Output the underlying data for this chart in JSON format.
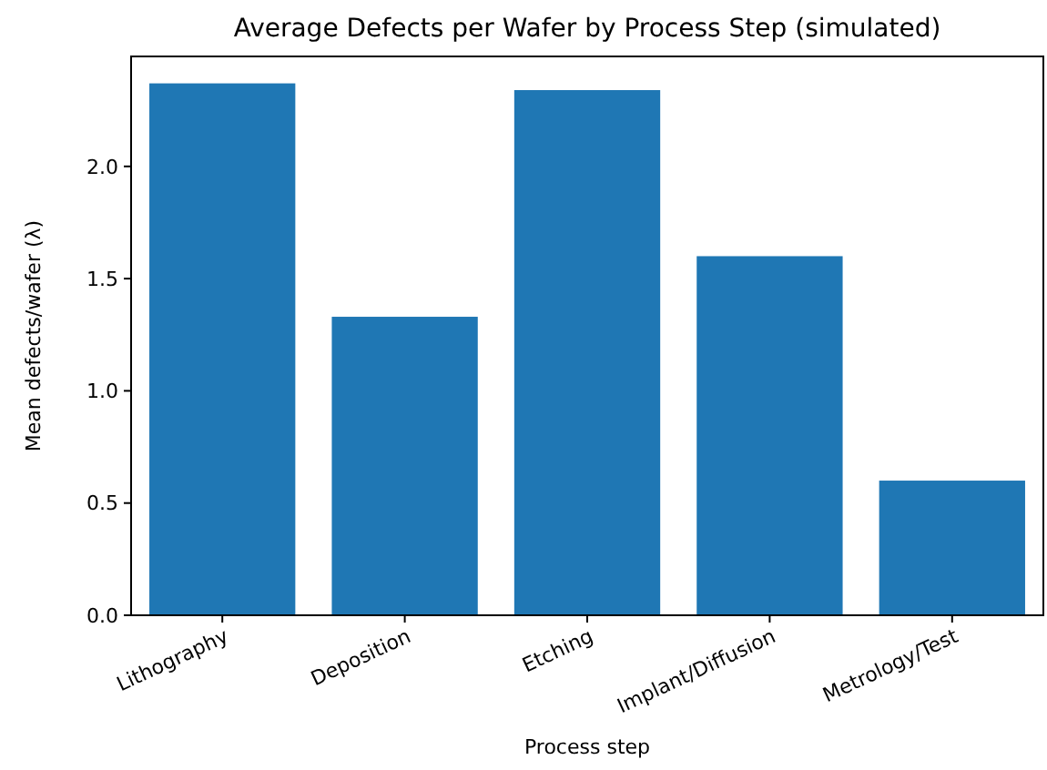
{
  "chart_data": {
    "type": "bar",
    "title": "Average Defects per Wafer by Process Step (simulated)",
    "xlabel": "Process step",
    "ylabel": "Mean defects/wafer (λ)",
    "categories": [
      "Lithography",
      "Deposition",
      "Etching",
      "Implant/Diffusion",
      "Metrology/Test"
    ],
    "values": [
      2.37,
      1.33,
      2.34,
      1.6,
      0.6
    ],
    "color": "#1f77b4",
    "ylim": [
      0,
      2.49
    ],
    "yticks": [
      {
        "value": 0,
        "label": "0.0"
      },
      {
        "value": 0.5,
        "label": "0.5"
      },
      {
        "value": 1,
        "label": "1.0"
      },
      {
        "value": 1.5,
        "label": "1.5"
      },
      {
        "value": 2,
        "label": "2.0"
      }
    ],
    "grid": false
  }
}
